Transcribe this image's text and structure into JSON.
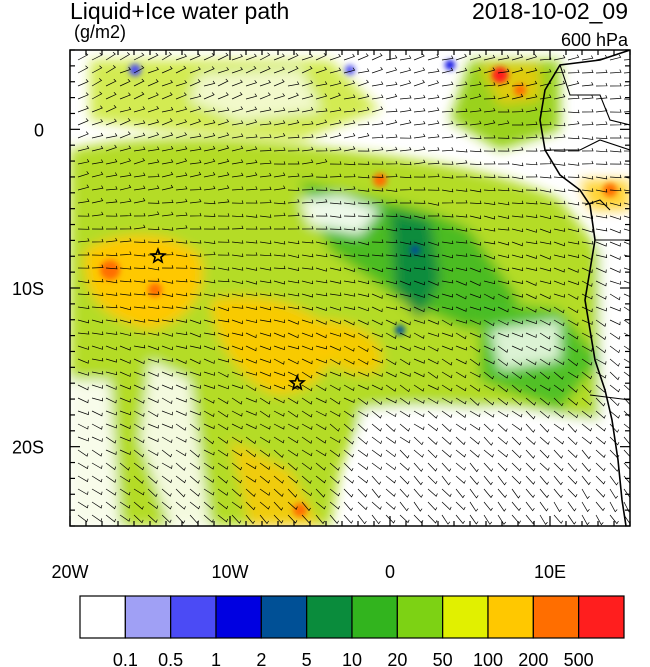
{
  "header": {
    "title": "Liquid+Ice water path",
    "units": "(g/m2)",
    "datetime": "2018-10-02_09",
    "level": "600 hPa"
  },
  "axes": {
    "lon_range": [
      -20,
      15
    ],
    "lat_range": [
      -25,
      5
    ],
    "lon_labels": [
      {
        "value": -20,
        "text": "20W"
      },
      {
        "value": -10,
        "text": "10W"
      },
      {
        "value": 0,
        "text": "0"
      },
      {
        "value": 10,
        "text": "10E"
      }
    ],
    "lat_labels": [
      {
        "value": 0,
        "text": "0"
      },
      {
        "value": -10,
        "text": "10S"
      },
      {
        "value": -20,
        "text": "20S"
      }
    ]
  },
  "markers": [
    {
      "name": "star-marker-1",
      "lon": -14.5,
      "lat": -8.0
    },
    {
      "name": "star-marker-2",
      "lon": -5.8,
      "lat": -16.0
    }
  ],
  "colorbar": {
    "colors": [
      "#ffffff",
      "#a0a0f5",
      "#4b4bf5",
      "#0000e1",
      "#005096",
      "#0a8c3c",
      "#32b41e",
      "#7dd214",
      "#e1f000",
      "#ffc800",
      "#ff6e00",
      "#ff1e1e"
    ],
    "labels": [
      "0.1",
      "0.5",
      "1",
      "2",
      "5",
      "10",
      "20",
      "50",
      "100",
      "200",
      "500"
    ]
  }
}
